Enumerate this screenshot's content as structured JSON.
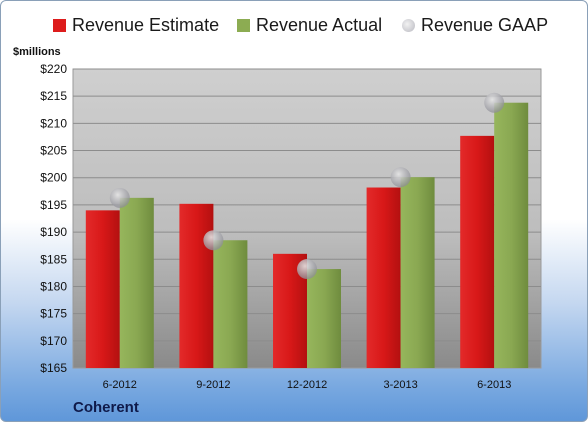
{
  "chart_data": {
    "type": "bar",
    "categories": [
      "6-2012",
      "9-2012",
      "12-2012",
      "3-2013",
      "6-2013"
    ],
    "series": [
      {
        "name": "Revenue Estimate",
        "values": [
          194.0,
          195.2,
          186.0,
          198.2,
          207.7
        ],
        "color": "#dd1c1c",
        "kind": "bar"
      },
      {
        "name": "Revenue Actual",
        "values": [
          196.3,
          188.5,
          183.2,
          200.1,
          213.8
        ],
        "color": "#8cac52",
        "kind": "bar"
      },
      {
        "name": "Revenue GAAP",
        "values": [
          196.3,
          188.5,
          183.2,
          200.1,
          213.8
        ],
        "color": "#a9a9a9",
        "kind": "point"
      }
    ],
    "ylabel": "$millions",
    "ylim": [
      165,
      220
    ],
    "yticks": [
      "$165",
      "$170",
      "$175",
      "$180",
      "$185",
      "$190",
      "$195",
      "$200",
      "$205",
      "$210",
      "$215",
      "$220"
    ],
    "grid": true,
    "legend": "top"
  },
  "footer": {
    "company": "Coherent"
  }
}
